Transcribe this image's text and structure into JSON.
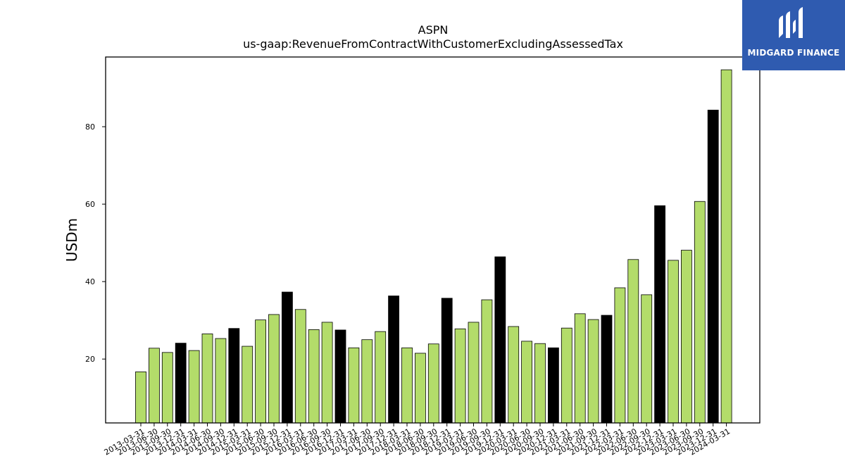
{
  "chart_data": {
    "type": "bar",
    "title": "ASPN",
    "subtitle": "us-gaap:RevenueFromContractWithCustomerExcludingAssessedTax",
    "xlabel": "",
    "ylabel": "USDm",
    "ylim": [
      3.5,
      98
    ],
    "yticks": [
      20,
      40,
      60,
      80
    ],
    "grid": false,
    "categories": [
      "2013-03-31",
      "2013-06-30",
      "2013-09-30",
      "2013-12-31",
      "2014-03-31",
      "2014-06-30",
      "2014-09-30",
      "2014-12-31",
      "2015-03-31",
      "2015-06-30",
      "2015-09-30",
      "2015-12-31",
      "2016-03-31",
      "2016-06-30",
      "2016-09-30",
      "2016-12-31",
      "2017-03-31",
      "2017-06-30",
      "2017-09-30",
      "2017-12-31",
      "2018-03-31",
      "2018-06-30",
      "2018-09-30",
      "2018-12-31",
      "2019-03-31",
      "2019-06-30",
      "2019-09-30",
      "2019-12-31",
      "2020-03-31",
      "2020-06-30",
      "2020-09-30",
      "2020-12-31",
      "2021-03-31",
      "2021-06-30",
      "2021-09-30",
      "2021-12-31",
      "2022-03-31",
      "2022-06-30",
      "2022-09-30",
      "2022-12-31",
      "2023-03-31",
      "2023-06-30",
      "2023-09-30",
      "2023-12-31",
      "2024-03-31"
    ],
    "values": [
      16.7,
      22.8,
      21.7,
      24.1,
      22.2,
      26.5,
      25.3,
      27.9,
      23.3,
      30.1,
      31.5,
      37.3,
      32.8,
      27.6,
      29.5,
      27.5,
      22.9,
      25.0,
      27.1,
      36.3,
      22.9,
      21.5,
      23.9,
      35.7,
      27.8,
      29.5,
      35.3,
      46.4,
      28.4,
      24.6,
      24.0,
      22.9,
      28.0,
      31.7,
      30.2,
      31.3,
      38.4,
      45.7,
      36.6,
      59.6,
      45.5,
      48.1,
      60.7,
      84.3,
      94.7
    ],
    "highlighted": [
      3,
      7,
      11,
      15,
      19,
      23,
      27,
      31,
      35,
      39,
      43
    ],
    "colors": {
      "bar": "#b3dc6a",
      "highlight": "#000000",
      "edge": "#000000"
    }
  },
  "logo": {
    "text": "MIDGARD FINANCE",
    "icon": "midgard-logo-icon",
    "background": "#2f5bb0"
  }
}
